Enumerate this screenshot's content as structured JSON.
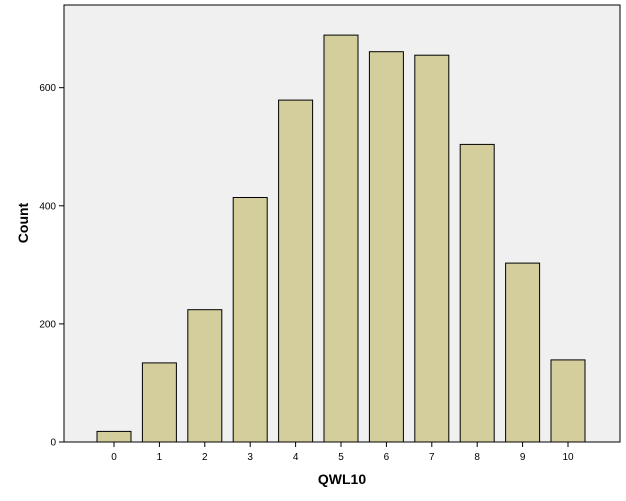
{
  "chart_data": {
    "type": "bar",
    "title": "",
    "xlabel": "QWL10",
    "ylabel": "Count",
    "categories": [
      "0",
      "1",
      "2",
      "3",
      "4",
      "5",
      "6",
      "7",
      "8",
      "9",
      "10"
    ],
    "values": [
      18,
      134,
      224,
      414,
      579,
      689,
      661,
      655,
      504,
      303,
      139
    ],
    "ylim": [
      0,
      740
    ],
    "yticks": [
      0,
      200,
      400,
      600
    ],
    "grid": false,
    "legend": "none",
    "colors": {
      "bar_fill": "#d3ce9b",
      "bar_stroke": "#000000",
      "plot_background": "#f0f0f0",
      "axis": "#000000"
    }
  }
}
